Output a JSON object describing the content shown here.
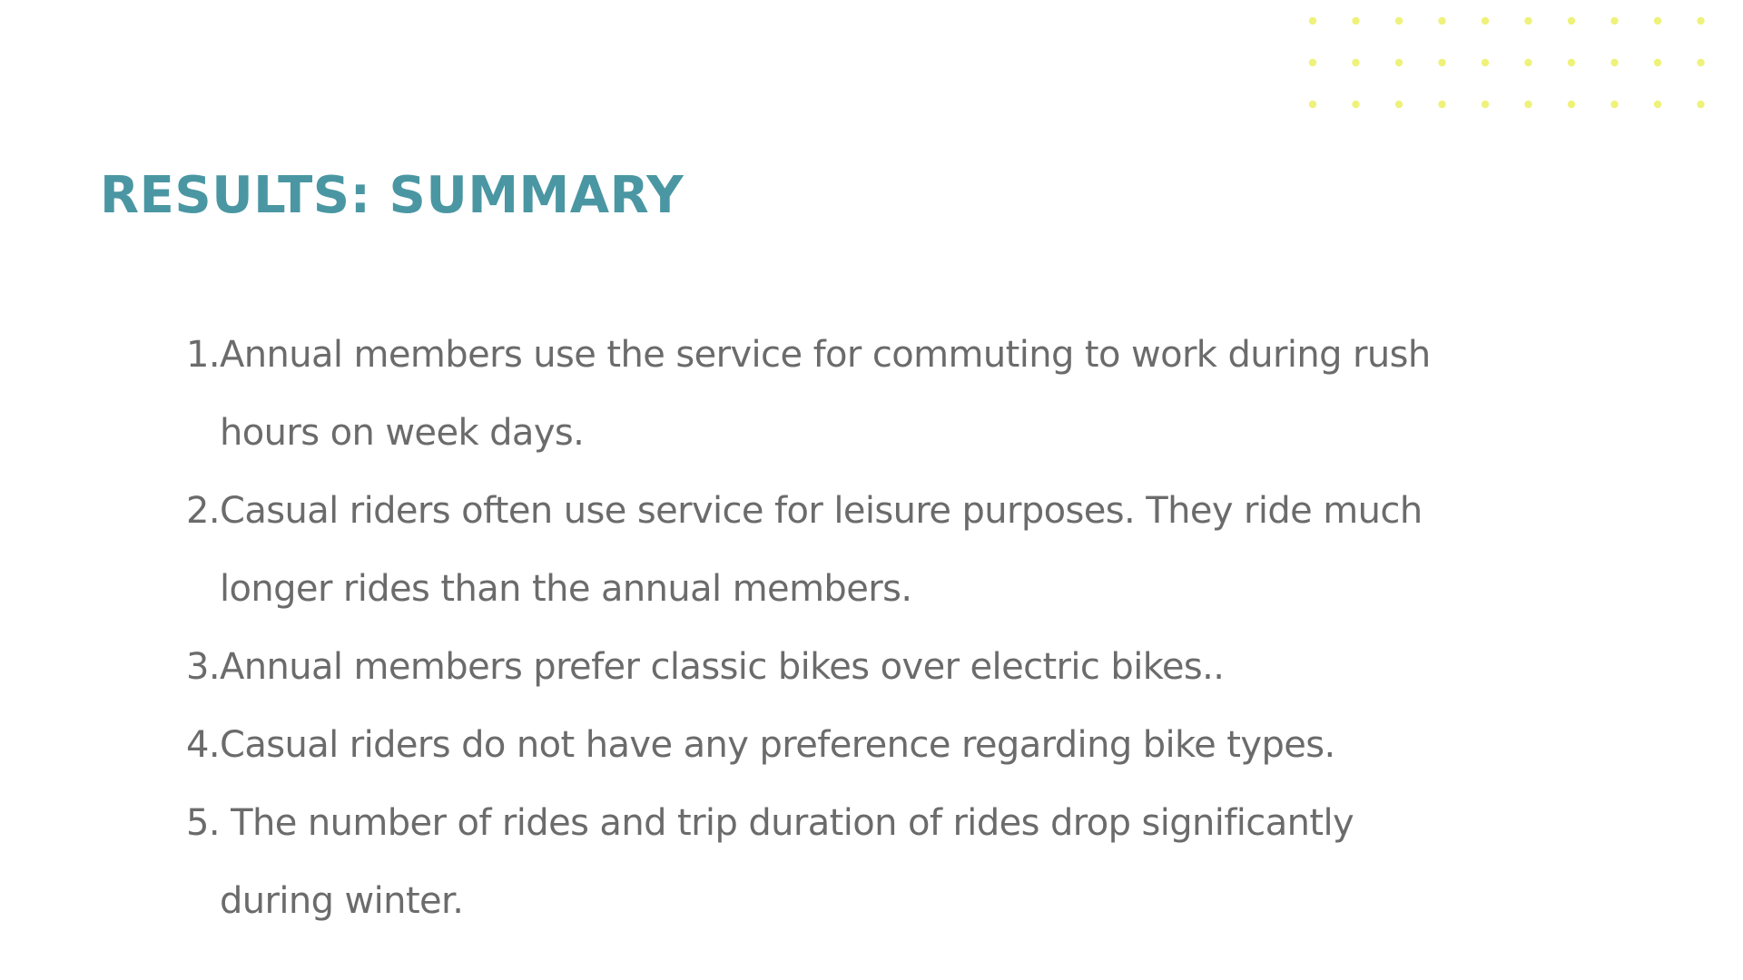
{
  "slide": {
    "title": "RESULTS: SUMMARY",
    "items": [
      {
        "number": "1.",
        "lines": [
          "Annual members use the service for commuting to work during rush",
          "hours on week days."
        ]
      },
      {
        "number": "2.",
        "lines": [
          "Casual riders often use service for leisure purposes. They ride much",
          "longer rides than the annual members."
        ]
      },
      {
        "number": "3.",
        "lines": [
          "Annual members prefer classic bikes over electric bikes.."
        ]
      },
      {
        "number": "4.",
        "lines": [
          "Casual riders do not have any preference regarding bike types."
        ]
      },
      {
        "number": "5.",
        "lines": [
          " The number of rides and trip duration of rides drop significantly",
          "during winter."
        ]
      }
    ]
  },
  "colors": {
    "title": "#4a97a3",
    "body_text": "#6b6b6b",
    "accent_dots": "#eef27a",
    "background": "#ffffff"
  },
  "decorations": {
    "dot_grid": {
      "rows": 3,
      "columns": 10,
      "icon": "dot-pattern-icon"
    }
  }
}
